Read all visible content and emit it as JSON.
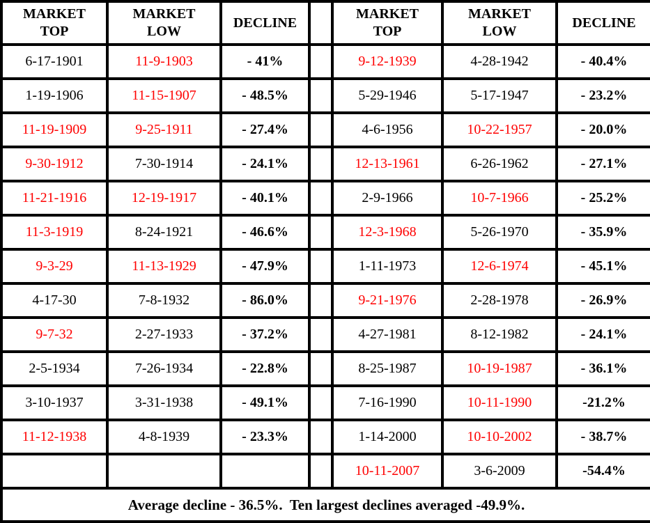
{
  "colors": {
    "black": "#000000",
    "red": "#ff0000",
    "border": "#000000",
    "background": "#ffffff"
  },
  "table": {
    "headers": [
      {
        "label": "MARKET\nTOP"
      },
      {
        "label": "MARKET\nLOW"
      },
      {
        "label": "DECLINE"
      },
      {
        "label": "MARKET\nTOP"
      },
      {
        "label": "MARKET\nLOW"
      },
      {
        "label": "DECLINE"
      }
    ],
    "rows": [
      {
        "cells": [
          {
            "text": "6-17-1901",
            "color": "black"
          },
          {
            "text": "11-9-1903",
            "color": "red"
          },
          {
            "text": "- 41%",
            "color": "black"
          },
          {
            "text": "9-12-1939",
            "color": "red"
          },
          {
            "text": "4-28-1942",
            "color": "black"
          },
          {
            "text": "- 40.4%",
            "color": "black"
          }
        ]
      },
      {
        "cells": [
          {
            "text": "1-19-1906",
            "color": "black"
          },
          {
            "text": "11-15-1907",
            "color": "red"
          },
          {
            "text": "- 48.5%",
            "color": "black"
          },
          {
            "text": "5-29-1946",
            "color": "black"
          },
          {
            "text": "5-17-1947",
            "color": "black"
          },
          {
            "text": "- 23.2%",
            "color": "black"
          }
        ]
      },
      {
        "cells": [
          {
            "text": "11-19-1909",
            "color": "red"
          },
          {
            "text": "9-25-1911",
            "color": "red"
          },
          {
            "text": "- 27.4%",
            "color": "black"
          },
          {
            "text": "4-6-1956",
            "color": "black"
          },
          {
            "text": "10-22-1957",
            "color": "red"
          },
          {
            "text": "- 20.0%",
            "color": "black"
          }
        ]
      },
      {
        "cells": [
          {
            "text": "9-30-1912",
            "color": "red"
          },
          {
            "text": "7-30-1914",
            "color": "black"
          },
          {
            "text": "- 24.1%",
            "color": "black"
          },
          {
            "text": "12-13-1961",
            "color": "red"
          },
          {
            "text": "6-26-1962",
            "color": "black"
          },
          {
            "text": "- 27.1%",
            "color": "black"
          }
        ]
      },
      {
        "cells": [
          {
            "text": "11-21-1916",
            "color": "red"
          },
          {
            "text": "12-19-1917",
            "color": "red"
          },
          {
            "text": "- 40.1%",
            "color": "black"
          },
          {
            "text": "2-9-1966",
            "color": "black"
          },
          {
            "text": "10-7-1966",
            "color": "red"
          },
          {
            "text": "- 25.2%",
            "color": "black"
          }
        ]
      },
      {
        "cells": [
          {
            "text": "11-3-1919",
            "color": "red"
          },
          {
            "text": "8-24-1921",
            "color": "black"
          },
          {
            "text": "- 46.6%",
            "color": "black"
          },
          {
            "text": "12-3-1968",
            "color": "red"
          },
          {
            "text": "5-26-1970",
            "color": "black"
          },
          {
            "text": "- 35.9%",
            "color": "black"
          }
        ]
      },
      {
        "cells": [
          {
            "text": "9-3-29",
            "color": "red"
          },
          {
            "text": "11-13-1929",
            "color": "red"
          },
          {
            "text": "- 47.9%",
            "color": "black"
          },
          {
            "text": "1-11-1973",
            "color": "black"
          },
          {
            "text": "12-6-1974",
            "color": "red"
          },
          {
            "text": "- 45.1%",
            "color": "black"
          }
        ]
      },
      {
        "cells": [
          {
            "text": "4-17-30",
            "color": "black"
          },
          {
            "text": "7-8-1932",
            "color": "black"
          },
          {
            "text": "- 86.0%",
            "color": "black"
          },
          {
            "text": "9-21-1976",
            "color": "red"
          },
          {
            "text": "2-28-1978",
            "color": "black"
          },
          {
            "text": "- 26.9%",
            "color": "black"
          }
        ]
      },
      {
        "cells": [
          {
            "text": "9-7-32",
            "color": "red"
          },
          {
            "text": "2-27-1933",
            "color": "black"
          },
          {
            "text": "- 37.2%",
            "color": "black"
          },
          {
            "text": "4-27-1981",
            "color": "black"
          },
          {
            "text": "8-12-1982",
            "color": "black"
          },
          {
            "text": "- 24.1%",
            "color": "black"
          }
        ]
      },
      {
        "cells": [
          {
            "text": "2-5-1934",
            "color": "black"
          },
          {
            "text": "7-26-1934",
            "color": "black"
          },
          {
            "text": "- 22.8%",
            "color": "black"
          },
          {
            "text": "8-25-1987",
            "color": "black"
          },
          {
            "text": "10-19-1987",
            "color": "red"
          },
          {
            "text": "- 36.1%",
            "color": "black"
          }
        ]
      },
      {
        "cells": [
          {
            "text": "3-10-1937",
            "color": "black"
          },
          {
            "text": "3-31-1938",
            "color": "black"
          },
          {
            "text": "- 49.1%",
            "color": "black"
          },
          {
            "text": "7-16-1990",
            "color": "black"
          },
          {
            "text": "10-11-1990",
            "color": "red"
          },
          {
            "text": "-21.2%",
            "color": "black"
          }
        ]
      },
      {
        "cells": [
          {
            "text": "11-12-1938",
            "color": "red"
          },
          {
            "text": "4-8-1939",
            "color": "black"
          },
          {
            "text": "- 23.3%",
            "color": "black"
          },
          {
            "text": "1-14-2000",
            "color": "black"
          },
          {
            "text": "10-10-2002",
            "color": "red"
          },
          {
            "text": "- 38.7%",
            "color": "black"
          }
        ]
      },
      {
        "cells": [
          {
            "text": "",
            "color": "black"
          },
          {
            "text": "",
            "color": "black"
          },
          {
            "text": "",
            "color": "black"
          },
          {
            "text": "10-11-2007",
            "color": "red"
          },
          {
            "text": "3-6-2009",
            "color": "black"
          },
          {
            "text": "-54.4%",
            "color": "black"
          }
        ]
      }
    ],
    "footer": "Average decline - 36.5%.  Ten largest declines averaged -49.9%."
  },
  "chart_data": {
    "type": "table",
    "columns": [
      "MARKET TOP",
      "MARKET LOW",
      "DECLINE"
    ],
    "records": [
      {
        "market_top": "6-17-1901",
        "market_low": "11-9-1903",
        "decline": "-41%"
      },
      {
        "market_top": "1-19-1906",
        "market_low": "11-15-1907",
        "decline": "-48.5%"
      },
      {
        "market_top": "11-19-1909",
        "market_low": "9-25-1911",
        "decline": "-27.4%"
      },
      {
        "market_top": "9-30-1912",
        "market_low": "7-30-1914",
        "decline": "-24.1%"
      },
      {
        "market_top": "11-21-1916",
        "market_low": "12-19-1917",
        "decline": "-40.1%"
      },
      {
        "market_top": "11-3-1919",
        "market_low": "8-24-1921",
        "decline": "-46.6%"
      },
      {
        "market_top": "9-3-29",
        "market_low": "11-13-1929",
        "decline": "-47.9%"
      },
      {
        "market_top": "4-17-30",
        "market_low": "7-8-1932",
        "decline": "-86.0%"
      },
      {
        "market_top": "9-7-32",
        "market_low": "2-27-1933",
        "decline": "-37.2%"
      },
      {
        "market_top": "2-5-1934",
        "market_low": "7-26-1934",
        "decline": "-22.8%"
      },
      {
        "market_top": "3-10-1937",
        "market_low": "3-31-1938",
        "decline": "-49.1%"
      },
      {
        "market_top": "11-12-1938",
        "market_low": "4-8-1939",
        "decline": "-23.3%"
      },
      {
        "market_top": "9-12-1939",
        "market_low": "4-28-1942",
        "decline": "-40.4%"
      },
      {
        "market_top": "5-29-1946",
        "market_low": "5-17-1947",
        "decline": "-23.2%"
      },
      {
        "market_top": "4-6-1956",
        "market_low": "10-22-1957",
        "decline": "-20.0%"
      },
      {
        "market_top": "12-13-1961",
        "market_low": "6-26-1962",
        "decline": "-27.1%"
      },
      {
        "market_top": "2-9-1966",
        "market_low": "10-7-1966",
        "decline": "-25.2%"
      },
      {
        "market_top": "12-3-1968",
        "market_low": "5-26-1970",
        "decline": "-35.9%"
      },
      {
        "market_top": "1-11-1973",
        "market_low": "12-6-1974",
        "decline": "-45.1%"
      },
      {
        "market_top": "9-21-1976",
        "market_low": "2-28-1978",
        "decline": "-26.9%"
      },
      {
        "market_top": "4-27-1981",
        "market_low": "8-12-1982",
        "decline": "-24.1%"
      },
      {
        "market_top": "8-25-1987",
        "market_low": "10-19-1987",
        "decline": "-36.1%"
      },
      {
        "market_top": "7-16-1990",
        "market_low": "10-11-1990",
        "decline": "-21.2%"
      },
      {
        "market_top": "1-14-2000",
        "market_low": "10-10-2002",
        "decline": "-38.7%"
      },
      {
        "market_top": "10-11-2007",
        "market_low": "3-6-2009",
        "decline": "-54.4%"
      }
    ],
    "summary": {
      "average_decline": "-36.5%",
      "ten_largest_declines_average": "-49.9%"
    }
  }
}
